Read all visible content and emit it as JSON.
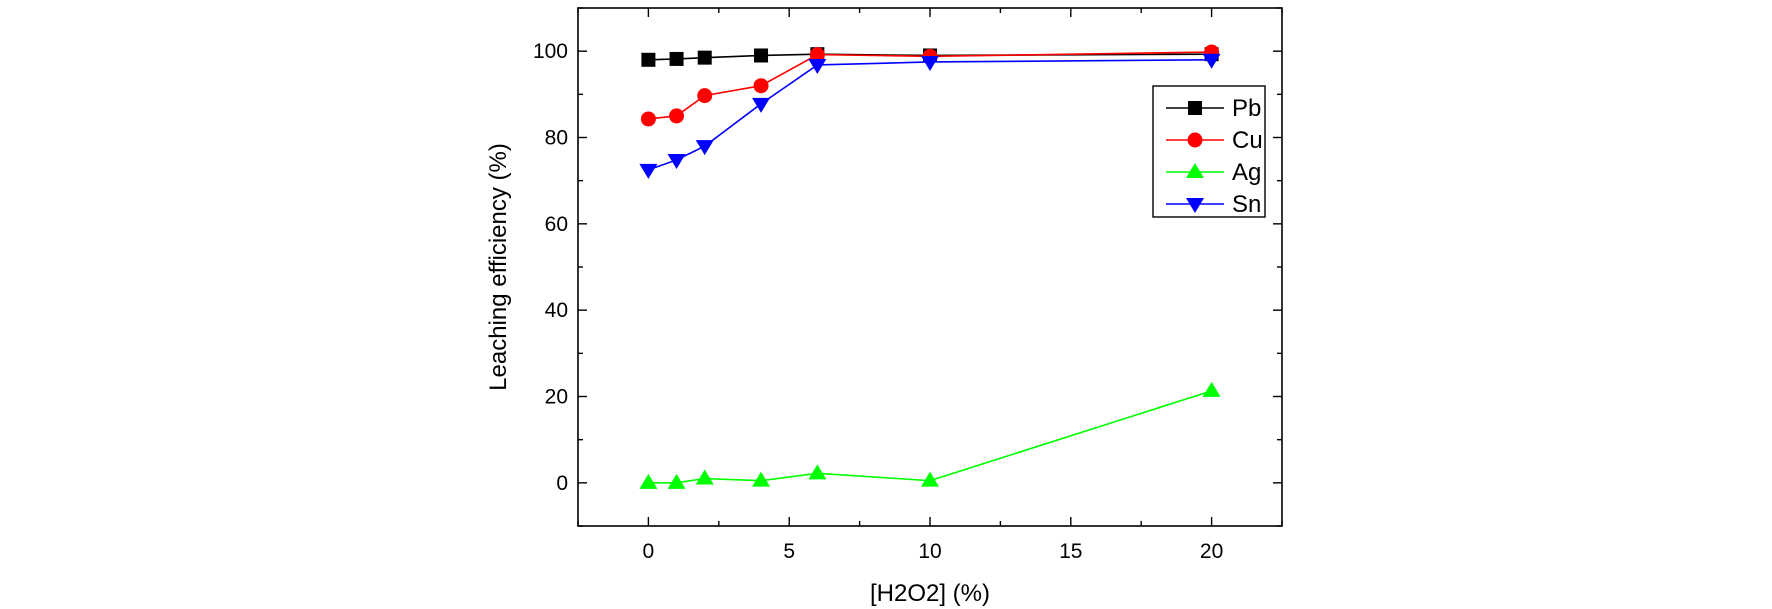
{
  "chart_data": {
    "type": "line",
    "title": "",
    "xlabel": "[H2O2] (%)",
    "ylabel": "Leaching efficiency (%)",
    "xlim": [
      -2.5,
      22.5
    ],
    "ylim": [
      -10,
      110
    ],
    "xticks": [
      0,
      5,
      10,
      15,
      20
    ],
    "yticks": [
      0,
      20,
      40,
      60,
      80,
      100
    ],
    "grid": false,
    "legend_position": "top-right",
    "series": [
      {
        "name": "Pb",
        "color": "#000000",
        "marker": "square",
        "x": [
          0,
          1,
          2,
          4,
          6,
          10,
          20
        ],
        "y": [
          98.0,
          98.2,
          98.5,
          99.0,
          99.3,
          99.0,
          99.3
        ]
      },
      {
        "name": "Cu",
        "color": "#ff0000",
        "marker": "circle",
        "x": [
          0,
          1,
          2,
          4,
          6,
          10,
          20
        ],
        "y": [
          84.3,
          85.0,
          89.7,
          92.0,
          99.2,
          98.8,
          99.8
        ]
      },
      {
        "name": "Ag",
        "color": "#00ff00",
        "marker": "triangle-up",
        "x": [
          0,
          1,
          2,
          4,
          6,
          10,
          20
        ],
        "y": [
          0.0,
          0.0,
          1.0,
          0.5,
          2.2,
          0.5,
          21.3
        ]
      },
      {
        "name": "Sn",
        "color": "#0000ff",
        "marker": "triangle-down",
        "x": [
          0,
          1,
          2,
          4,
          6,
          10,
          20
        ],
        "y": [
          72.5,
          74.8,
          78.0,
          87.8,
          96.8,
          97.5,
          98.0
        ]
      }
    ]
  }
}
